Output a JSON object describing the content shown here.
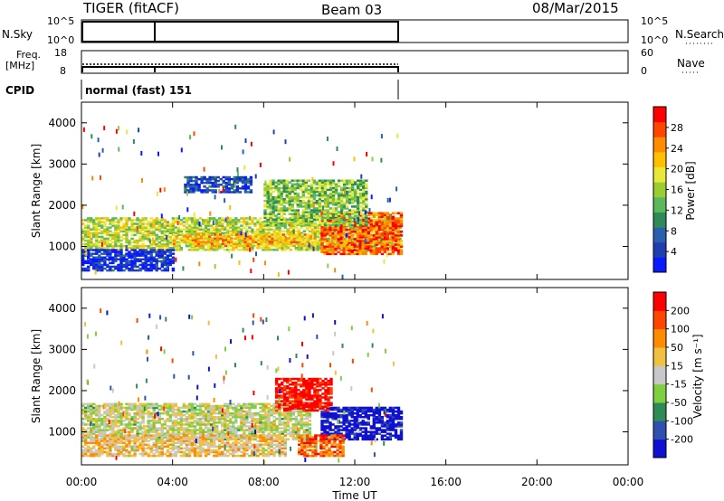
{
  "header": {
    "station": "TIGER (fitACF)",
    "beam": "Beam 03",
    "date": "08/Mar/2015"
  },
  "top_panels": {
    "nsky_label": "N.Sky",
    "nsky_ticks": [
      "10^5",
      "10^0"
    ],
    "nsky_right_ticks": [
      "10^5",
      "10^0"
    ],
    "nsearch_label": "N.Search",
    "freq_label": "Freq.",
    "freq_unit": "[MHz]",
    "freq_ticks": [
      "18",
      "8"
    ],
    "nave_ticks": [
      "60",
      "0"
    ],
    "nave_label": "Nave",
    "cpid_label": "CPID",
    "cpid_value": "normal (fast) 151"
  },
  "chart_data": [
    {
      "type": "heatmap",
      "name": "power",
      "ylabel": "Slant Range [km]",
      "yticks": [
        "4000",
        "3000",
        "2000",
        "1000"
      ],
      "ylim": [
        200,
        4500
      ],
      "xlim": [
        0,
        24
      ],
      "data_end_hour": 14,
      "colorbar": {
        "label": "Power [dB]",
        "ticks": [
          "28",
          "24",
          "20",
          "16",
          "12",
          "8",
          "4"
        ],
        "colors": [
          "#0a1aff",
          "#1f3fb0",
          "#2a5fb0",
          "#2e8b57",
          "#5cb85c",
          "#9acd32",
          "#e8e83a",
          "#ffc000",
          "#ff8c00",
          "#ff4500",
          "#ff0000"
        ]
      },
      "regions": [
        {
          "t0": 0.0,
          "t1": 14.0,
          "r0": 900,
          "r1": 1700,
          "level": 0.55
        },
        {
          "t0": 4.0,
          "t1": 10.0,
          "r0": 1000,
          "r1": 1300,
          "level": 0.7
        },
        {
          "t0": 10.5,
          "t1": 14.0,
          "r0": 800,
          "r1": 1800,
          "level": 0.85
        },
        {
          "t0": 8.0,
          "t1": 12.5,
          "r0": 1500,
          "r1": 2600,
          "level": 0.45
        },
        {
          "t0": 4.5,
          "t1": 7.5,
          "r0": 2300,
          "r1": 2700,
          "level": 0.15
        },
        {
          "t0": 0.0,
          "t1": 4.0,
          "r0": 400,
          "r1": 900,
          "level": 0.1
        }
      ]
    },
    {
      "type": "heatmap",
      "name": "velocity",
      "ylabel": "Slant Range [km]",
      "yticks": [
        "4000",
        "3000",
        "2000",
        "1000"
      ],
      "ylim": [
        200,
        4500
      ],
      "xlim": [
        0,
        24
      ],
      "data_end_hour": 14,
      "colorbar": {
        "label": "Velocity [m s⁻¹]",
        "ticks": [
          "200",
          "100",
          "50",
          "15",
          "-15",
          "-50",
          "-100",
          "-200"
        ],
        "colors": [
          "#1010d0",
          "#3050b0",
          "#2e8b57",
          "#7fd040",
          "#c8c8c8",
          "#f0c040",
          "#ff8c00",
          "#ff4500",
          "#ff0000"
        ]
      },
      "regions": [
        {
          "t0": 0.0,
          "t1": 10.0,
          "r0": 800,
          "r1": 1700,
          "level": 0.5
        },
        {
          "t0": 10.5,
          "t1": 14.0,
          "r0": 800,
          "r1": 1600,
          "level": 0.0
        },
        {
          "t0": 8.5,
          "t1": 11.0,
          "r0": 1500,
          "r1": 2300,
          "level": 0.95
        },
        {
          "t0": 9.5,
          "t1": 11.5,
          "r0": 400,
          "r1": 900,
          "level": 0.8
        },
        {
          "t0": 0.0,
          "t1": 9.0,
          "r0": 400,
          "r1": 900,
          "level": 0.6
        }
      ]
    }
  ],
  "x_axis": {
    "ticks": [
      "00:00",
      "04:00",
      "08:00",
      "12:00",
      "16:00",
      "20:00",
      "00:00"
    ],
    "label": "Time UT"
  }
}
